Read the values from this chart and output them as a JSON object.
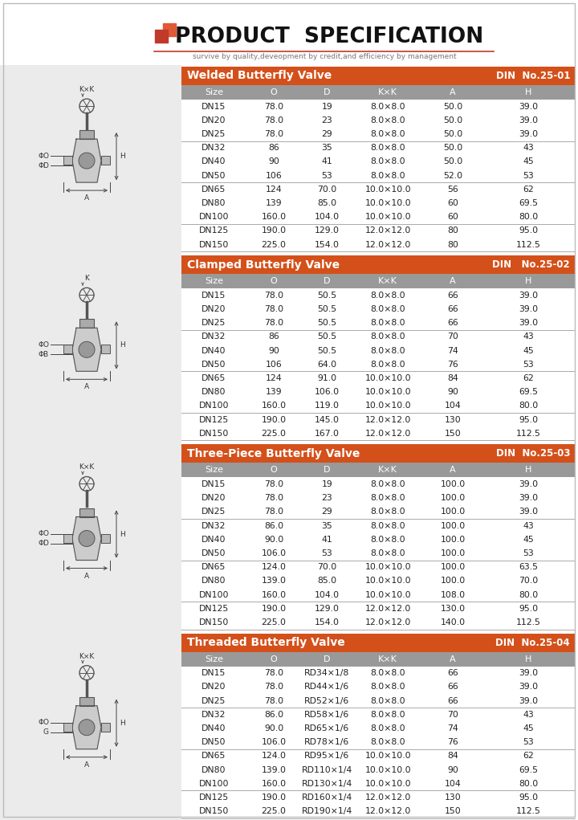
{
  "title": "PRODUCT  SPECIFICATION",
  "subtitle": "survive by quality,deveopment by credit,and efficiency by management",
  "header_color": "#d4501a",
  "subheader_color": "#999999",
  "sections": [
    {
      "title": "Welded Butterfly Valve",
      "din": "DIN  No.25-01",
      "columns": [
        "Size",
        "O",
        "D",
        "K×K",
        "A",
        "H"
      ],
      "groups": [
        [
          [
            "DN15",
            "78.0",
            "19",
            "8.0×8.0",
            "50.0",
            "39.0"
          ],
          [
            "DN20",
            "78.0",
            "23",
            "8.0×8.0",
            "50.0",
            "39.0"
          ],
          [
            "DN25",
            "78.0",
            "29",
            "8.0×8.0",
            "50.0",
            "39.0"
          ]
        ],
        [
          [
            "DN32",
            "86",
            "35",
            "8.0×8.0",
            "50.0",
            "43"
          ],
          [
            "DN40",
            "90",
            "41",
            "8.0×8.0",
            "50.0",
            "45"
          ],
          [
            "DN50",
            "106",
            "53",
            "8.0×8.0",
            "52.0",
            "53"
          ]
        ],
        [
          [
            "DN65",
            "124",
            "70.0",
            "10.0×10.0",
            "56",
            "62"
          ],
          [
            "DN80",
            "139",
            "85.0",
            "10.0×10.0",
            "60",
            "69.5"
          ],
          [
            "DN100",
            "160.0",
            "104.0",
            "10.0×10.0",
            "60",
            "80.0"
          ]
        ],
        [
          [
            "DN125",
            "190.0",
            "129.0",
            "12.0×12.0",
            "80",
            "95.0"
          ],
          [
            "DN150",
            "225.0",
            "154.0",
            "12.0×12.0",
            "80",
            "112.5"
          ]
        ]
      ],
      "diagram_labels": [
        "K×K",
        "ΦO",
        "ΦD",
        "H",
        "A"
      ]
    },
    {
      "title": "Clamped Butterfly Valve",
      "din": "DIN   No.25-02",
      "columns": [
        "Size",
        "O",
        "D",
        "K×K",
        "A",
        "H"
      ],
      "groups": [
        [
          [
            "DN15",
            "78.0",
            "50.5",
            "8.0×8.0",
            "66",
            "39.0"
          ],
          [
            "DN20",
            "78.0",
            "50.5",
            "8.0×8.0",
            "66",
            "39.0"
          ],
          [
            "DN25",
            "78.0",
            "50.5",
            "8.0×8.0",
            "66",
            "39.0"
          ]
        ],
        [
          [
            "DN32",
            "86",
            "50.5",
            "8.0×8.0",
            "70",
            "43"
          ],
          [
            "DN40",
            "90",
            "50.5",
            "8.0×8.0",
            "74",
            "45"
          ],
          [
            "DN50",
            "106",
            "64.0",
            "8.0×8.0",
            "76",
            "53"
          ]
        ],
        [
          [
            "DN65",
            "124",
            "91.0",
            "10.0×10.0",
            "84",
            "62"
          ],
          [
            "DN80",
            "139",
            "106.0",
            "10.0×10.0",
            "90",
            "69.5"
          ],
          [
            "DN100",
            "160.0",
            "119.0",
            "10.0×10.0",
            "104",
            "80.0"
          ]
        ],
        [
          [
            "DN125",
            "190.0",
            "145.0",
            "12.0×12.0",
            "130",
            "95.0"
          ],
          [
            "DN150",
            "225.0",
            "167.0",
            "12.0×12.0",
            "150",
            "112.5"
          ]
        ]
      ],
      "diagram_labels": [
        "K",
        "ΦO",
        "ΦB",
        "H",
        "A"
      ]
    },
    {
      "title": "Three-Piece Butterfly Valve",
      "din": "DIN  No.25-03",
      "columns": [
        "Size",
        "O",
        "D",
        "K×K",
        "A",
        "H"
      ],
      "groups": [
        [
          [
            "DN15",
            "78.0",
            "19",
            "8.0×8.0",
            "100.0",
            "39.0"
          ],
          [
            "DN20",
            "78.0",
            "23",
            "8.0×8.0",
            "100.0",
            "39.0"
          ],
          [
            "DN25",
            "78.0",
            "29",
            "8.0×8.0",
            "100.0",
            "39.0"
          ]
        ],
        [
          [
            "DN32",
            "86.0",
            "35",
            "8.0×8.0",
            "100.0",
            "43"
          ],
          [
            "DN40",
            "90.0",
            "41",
            "8.0×8.0",
            "100.0",
            "45"
          ],
          [
            "DN50",
            "106.0",
            "53",
            "8.0×8.0",
            "100.0",
            "53"
          ]
        ],
        [
          [
            "DN65",
            "124.0",
            "70.0",
            "10.0×10.0",
            "100.0",
            "63.5"
          ],
          [
            "DN80",
            "139.0",
            "85.0",
            "10.0×10.0",
            "100.0",
            "70.0"
          ],
          [
            "DN100",
            "160.0",
            "104.0",
            "10.0×10.0",
            "108.0",
            "80.0"
          ]
        ],
        [
          [
            "DN125",
            "190.0",
            "129.0",
            "12.0×12.0",
            "130.0",
            "95.0"
          ],
          [
            "DN150",
            "225.0",
            "154.0",
            "12.0×12.0",
            "140.0",
            "112.5"
          ]
        ]
      ],
      "diagram_labels": [
        "K×K",
        "ΦO",
        "ΦD",
        "H",
        "A"
      ]
    },
    {
      "title": "Threaded Butterfly Valve",
      "din": "DIN  No.25-04",
      "columns": [
        "Size",
        "O",
        "D",
        "K×K",
        "A",
        "H"
      ],
      "groups": [
        [
          [
            "DN15",
            "78.0",
            "RD34×1/8",
            "8.0×8.0",
            "66",
            "39.0"
          ],
          [
            "DN20",
            "78.0",
            "RD44×1/6",
            "8.0×8.0",
            "66",
            "39.0"
          ],
          [
            "DN25",
            "78.0",
            "RD52×1/6",
            "8.0×8.0",
            "66",
            "39.0"
          ]
        ],
        [
          [
            "DN32",
            "86.0",
            "RD58×1/6",
            "8.0×8.0",
            "70",
            "43"
          ],
          [
            "DN40",
            "90.0",
            "RD65×1/6",
            "8.0×8.0",
            "74",
            "45"
          ],
          [
            "DN50",
            "106.0",
            "RD78×1/6",
            "8.0×8.0",
            "76",
            "53"
          ]
        ],
        [
          [
            "DN65",
            "124.0",
            "RD95×1/6",
            "10.0×10.0",
            "84",
            "62"
          ],
          [
            "DN80",
            "139.0",
            "RD110×1/4",
            "10.0×10.0",
            "90",
            "69.5"
          ],
          [
            "DN100",
            "160.0",
            "RD130×1/4",
            "10.0×10.0",
            "104",
            "80.0"
          ]
        ],
        [
          [
            "DN125",
            "190.0",
            "RD160×1/4",
            "12.0×12.0",
            "130",
            "95.0"
          ],
          [
            "DN150",
            "225.0",
            "RD190×1/4",
            "12.0×12.0",
            "150",
            "112.5"
          ]
        ]
      ],
      "diagram_labels": [
        "K×K",
        "ΦO",
        "G",
        "H",
        "A"
      ]
    }
  ]
}
